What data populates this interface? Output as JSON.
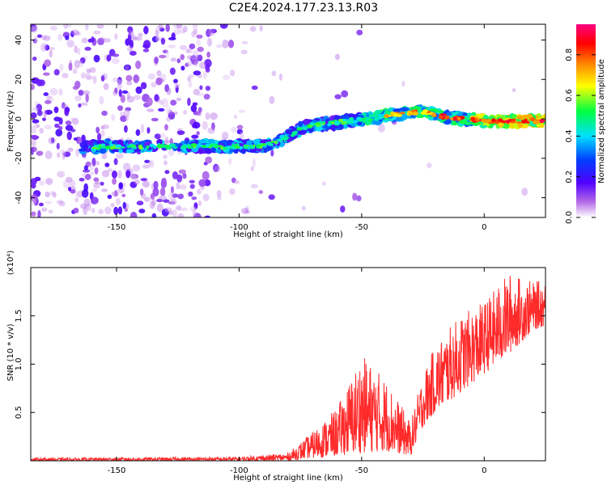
{
  "title": "C2E4.2024.177.23.13.R03",
  "chart_data": [
    {
      "type": "heatmap",
      "xlabel": "Height of straight line (km)",
      "ylabel": "Frequency (Hz)",
      "xlim": [
        -185,
        25
      ],
      "ylim": [
        -50,
        48
      ],
      "xticks": [
        -150,
        -100,
        -50,
        0
      ],
      "yticks": [
        -40,
        -20,
        0,
        20,
        40
      ],
      "colorbar": {
        "label": "Normalized spectral amplitude",
        "range": [
          0,
          0.95
        ],
        "ticks": [
          "0.0",
          "0.2",
          "0.4",
          "0.6",
          "0.8"
        ],
        "colormap": [
          "#ffffff",
          "#8a2be2",
          "#0000ff",
          "#00ffff",
          "#00ff00",
          "#ffff00",
          "#ff8000",
          "#ff0000",
          "#ff0080"
        ]
      },
      "ridge": [
        {
          "x": -162,
          "y": -14
        },
        {
          "x": -150,
          "y": -14
        },
        {
          "x": -140,
          "y": -14
        },
        {
          "x": -120,
          "y": -14
        },
        {
          "x": -100,
          "y": -14
        },
        {
          "x": -92,
          "y": -14
        },
        {
          "x": -85,
          "y": -12
        },
        {
          "x": -80,
          "y": -9
        },
        {
          "x": -75,
          "y": -5
        },
        {
          "x": -70,
          "y": -3
        },
        {
          "x": -60,
          "y": -2
        },
        {
          "x": -50,
          "y": 0
        },
        {
          "x": -45,
          "y": 0
        },
        {
          "x": -40,
          "y": 2
        },
        {
          "x": -30,
          "y": 3
        },
        {
          "x": -25,
          "y": 4
        },
        {
          "x": -20,
          "y": 2
        },
        {
          "x": -10,
          "y": 0
        },
        {
          "x": 0,
          "y": -1
        },
        {
          "x": 10,
          "y": -1
        },
        {
          "x": 20,
          "y": -1
        },
        {
          "x": 25,
          "y": -1
        }
      ]
    },
    {
      "type": "line",
      "xlabel": "Height of straight line (km)",
      "ylabel": "SNR (10 * v/v)",
      "y_multiplier": "(x10⁴)",
      "xlim": [
        -185,
        25
      ],
      "ylim": [
        0,
        2.0
      ],
      "xticks": [
        -150,
        -100,
        -50,
        0
      ],
      "yticks": [
        0.5,
        1.0,
        1.5
      ],
      "ytick_labels": [
        "0.5",
        "1.0",
        "1.5"
      ],
      "color": "#ff2a2a",
      "envelope": [
        {
          "x": -185,
          "lo": 0.0,
          "hi": 0.03
        },
        {
          "x": -100,
          "lo": 0.0,
          "hi": 0.04
        },
        {
          "x": -80,
          "lo": 0.0,
          "hi": 0.08
        },
        {
          "x": -70,
          "lo": 0.03,
          "hi": 0.3
        },
        {
          "x": -60,
          "lo": 0.05,
          "hi": 0.55
        },
        {
          "x": -50,
          "lo": 0.08,
          "hi": 1.1
        },
        {
          "x": -40,
          "lo": 0.1,
          "hi": 0.85
        },
        {
          "x": -30,
          "lo": 0.05,
          "hi": 0.4
        },
        {
          "x": -25,
          "lo": 0.35,
          "hi": 0.9
        },
        {
          "x": -20,
          "lo": 0.5,
          "hi": 1.2
        },
        {
          "x": -10,
          "lo": 0.7,
          "hi": 1.5
        },
        {
          "x": 0,
          "lo": 0.9,
          "hi": 1.65
        },
        {
          "x": 10,
          "lo": 1.1,
          "hi": 1.95
        },
        {
          "x": 20,
          "lo": 1.35,
          "hi": 1.85
        },
        {
          "x": 25,
          "lo": 1.4,
          "hi": 1.88
        }
      ]
    }
  ]
}
